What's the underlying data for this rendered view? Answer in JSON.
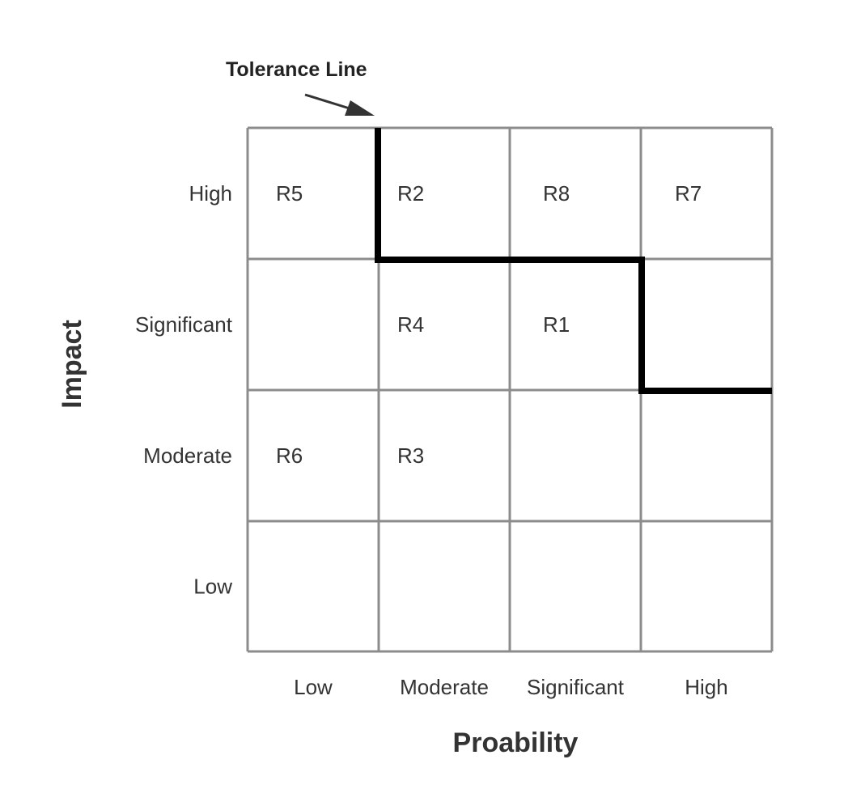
{
  "annotation": {
    "label": "Tolerance Line"
  },
  "axes": {
    "y_title": "Impact",
    "x_title": "Proability"
  },
  "rows": [
    "High",
    "Significant",
    "Moderate",
    "Low"
  ],
  "columns": [
    "Low",
    "Moderate",
    "Significant",
    "High"
  ],
  "risks": [
    {
      "label": "R5",
      "impact": "High",
      "probability": "Low"
    },
    {
      "label": "R2",
      "impact": "High",
      "probability": "Moderate"
    },
    {
      "label": "R8",
      "impact": "High",
      "probability": "Significant"
    },
    {
      "label": "R7",
      "impact": "High",
      "probability": "High"
    },
    {
      "label": "R4",
      "impact": "Significant",
      "probability": "Moderate"
    },
    {
      "label": "R1",
      "impact": "Significant",
      "probability": "Significant"
    },
    {
      "label": "R6",
      "impact": "Moderate",
      "probability": "Low"
    },
    {
      "label": "R3",
      "impact": "Moderate",
      "probability": "Moderate"
    }
  ],
  "colors": {
    "grid": "#8c8c8c",
    "tolerance_line": "#000000",
    "text": "#333333"
  }
}
